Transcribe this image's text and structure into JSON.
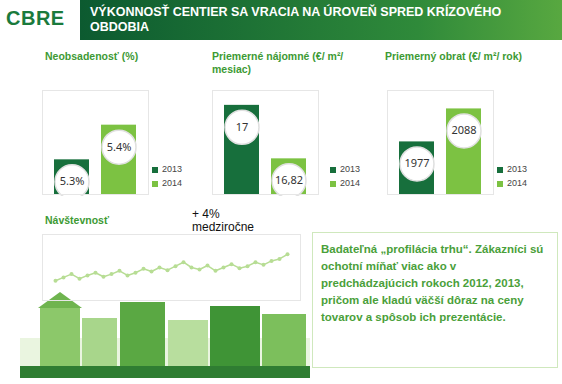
{
  "header": {
    "logo": "CBRE",
    "title": "VÝKONNOSŤ CENTIER SA VRACIA NA ÚROVEŇ SPRED KRÍZOVÉHO OBDOBIA"
  },
  "chart_data": [
    {
      "type": "bar",
      "title": "Neobsadenosť (%)",
      "categories": [
        "2013",
        "2014"
      ],
      "values": [
        5.3,
        5.4
      ],
      "value_labels": [
        "5.3%",
        "5.4%"
      ],
      "colors": [
        "#176f3c",
        "#7cc242"
      ],
      "ylim": [
        5.2,
        5.5
      ],
      "yticks": [],
      "tick_labels": false,
      "data_labels": true,
      "legend": "right"
    },
    {
      "type": "bar",
      "title": "Priemerné nájomné  (€/ m²/ mesiac)",
      "categories": [
        "2013",
        "2014"
      ],
      "values": [
        17,
        16.82
      ],
      "value_labels": [
        "17",
        "16,82"
      ],
      "colors": [
        "#176f3c",
        "#7cc242"
      ],
      "ylim": [
        16.7,
        17.05
      ],
      "yticks": [],
      "tick_labels": false,
      "data_labels": true,
      "legend": "right"
    },
    {
      "type": "bar",
      "title": "Priemerný obrat (€/ m²/ rok)",
      "categories": [
        "2013",
        "2014"
      ],
      "values": [
        1977,
        2088
      ],
      "colors": [
        "#176f3c",
        "#7cc242"
      ],
      "ylim": [
        1800,
        2150
      ],
      "yticks": [],
      "tick_labels": false,
      "data_labels": true,
      "legend": "right"
    },
    {
      "type": "line",
      "title": "Návštevnosť",
      "annotation": "+ 4% medziročne",
      "categories": [
        null,
        null,
        null,
        null,
        null,
        null,
        null,
        null,
        null,
        null,
        null,
        null,
        null,
        null,
        null,
        null,
        null,
        null,
        null,
        null,
        null,
        null,
        null,
        null,
        null,
        null,
        null,
        null,
        null,
        null
      ],
      "values": [
        30,
        35,
        40,
        33,
        38,
        42,
        36,
        40,
        45,
        38,
        42,
        48,
        44,
        50,
        46,
        52,
        58,
        50,
        47,
        53,
        45,
        50,
        55,
        49,
        52,
        58,
        54,
        60,
        63,
        70
      ],
      "color": "#b7dd94",
      "marker": "circle",
      "ylim": [
        0,
        100
      ],
      "yticks": [],
      "tick_labels": false
    }
  ],
  "text_box": "Badateľná „profilácia trhu“. Zákazníci sú ochotní míňať viac ako v predchádzajúcich rokoch 2012, 2013, pričom ale kladú väčší dôraz na ceny tovarov a spôsob ich prezentácie."
}
